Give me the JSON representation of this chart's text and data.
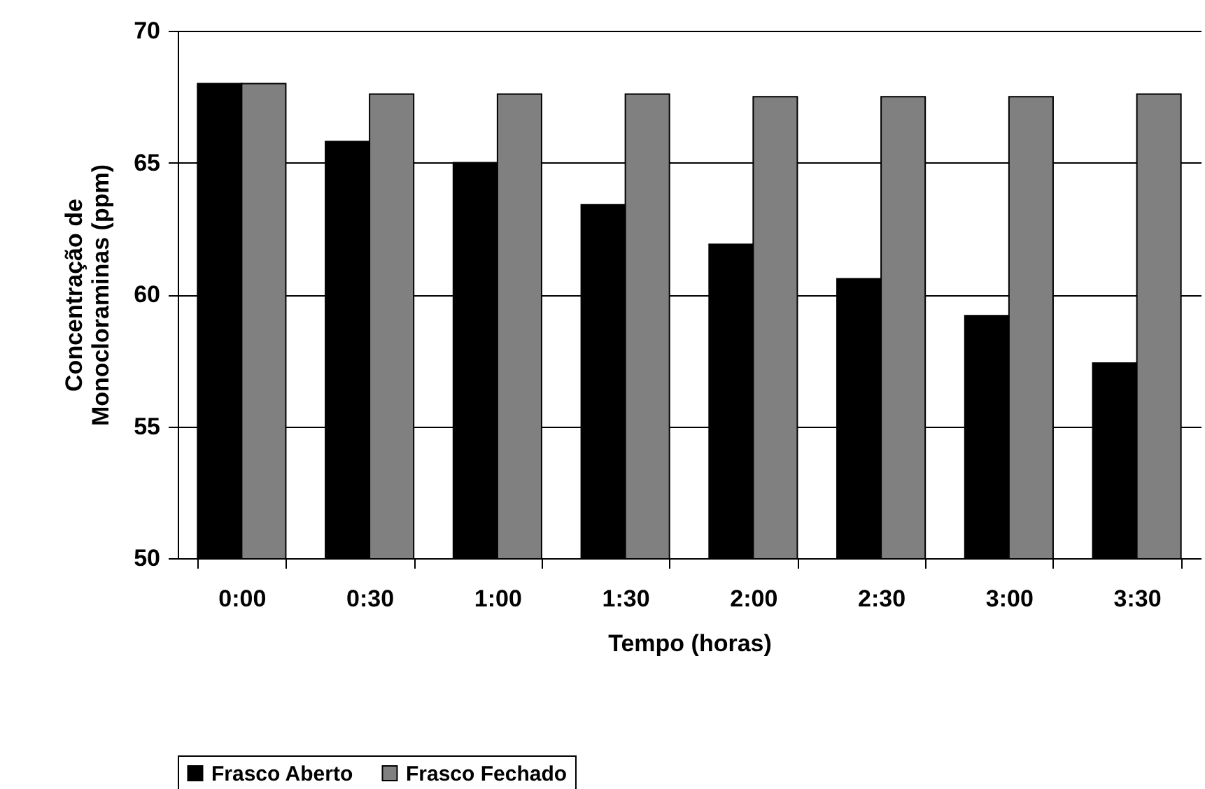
{
  "chart_data": {
    "type": "bar",
    "xlabel": "Tempo (horas)",
    "ylabel": "Concentração de\nMonocloraminas (ppm)",
    "categories": [
      "0:00",
      "0:30",
      "1:00",
      "1:30",
      "2:00",
      "2:30",
      "3:00",
      "3:30"
    ],
    "series": [
      {
        "name": "Frasco Aberto",
        "color": "#000000",
        "values": [
          68.0,
          65.8,
          65.0,
          63.4,
          61.9,
          60.6,
          59.2,
          57.4
        ]
      },
      {
        "name": "Frasco Fechado",
        "color": "#808080",
        "values": [
          68.0,
          67.6,
          67.6,
          67.6,
          67.5,
          67.5,
          67.5,
          67.6
        ]
      }
    ],
    "ylim": [
      50,
      70
    ],
    "yticks": [
      50,
      55,
      60,
      65,
      70
    ],
    "grid": "y",
    "legend": "bottom"
  }
}
